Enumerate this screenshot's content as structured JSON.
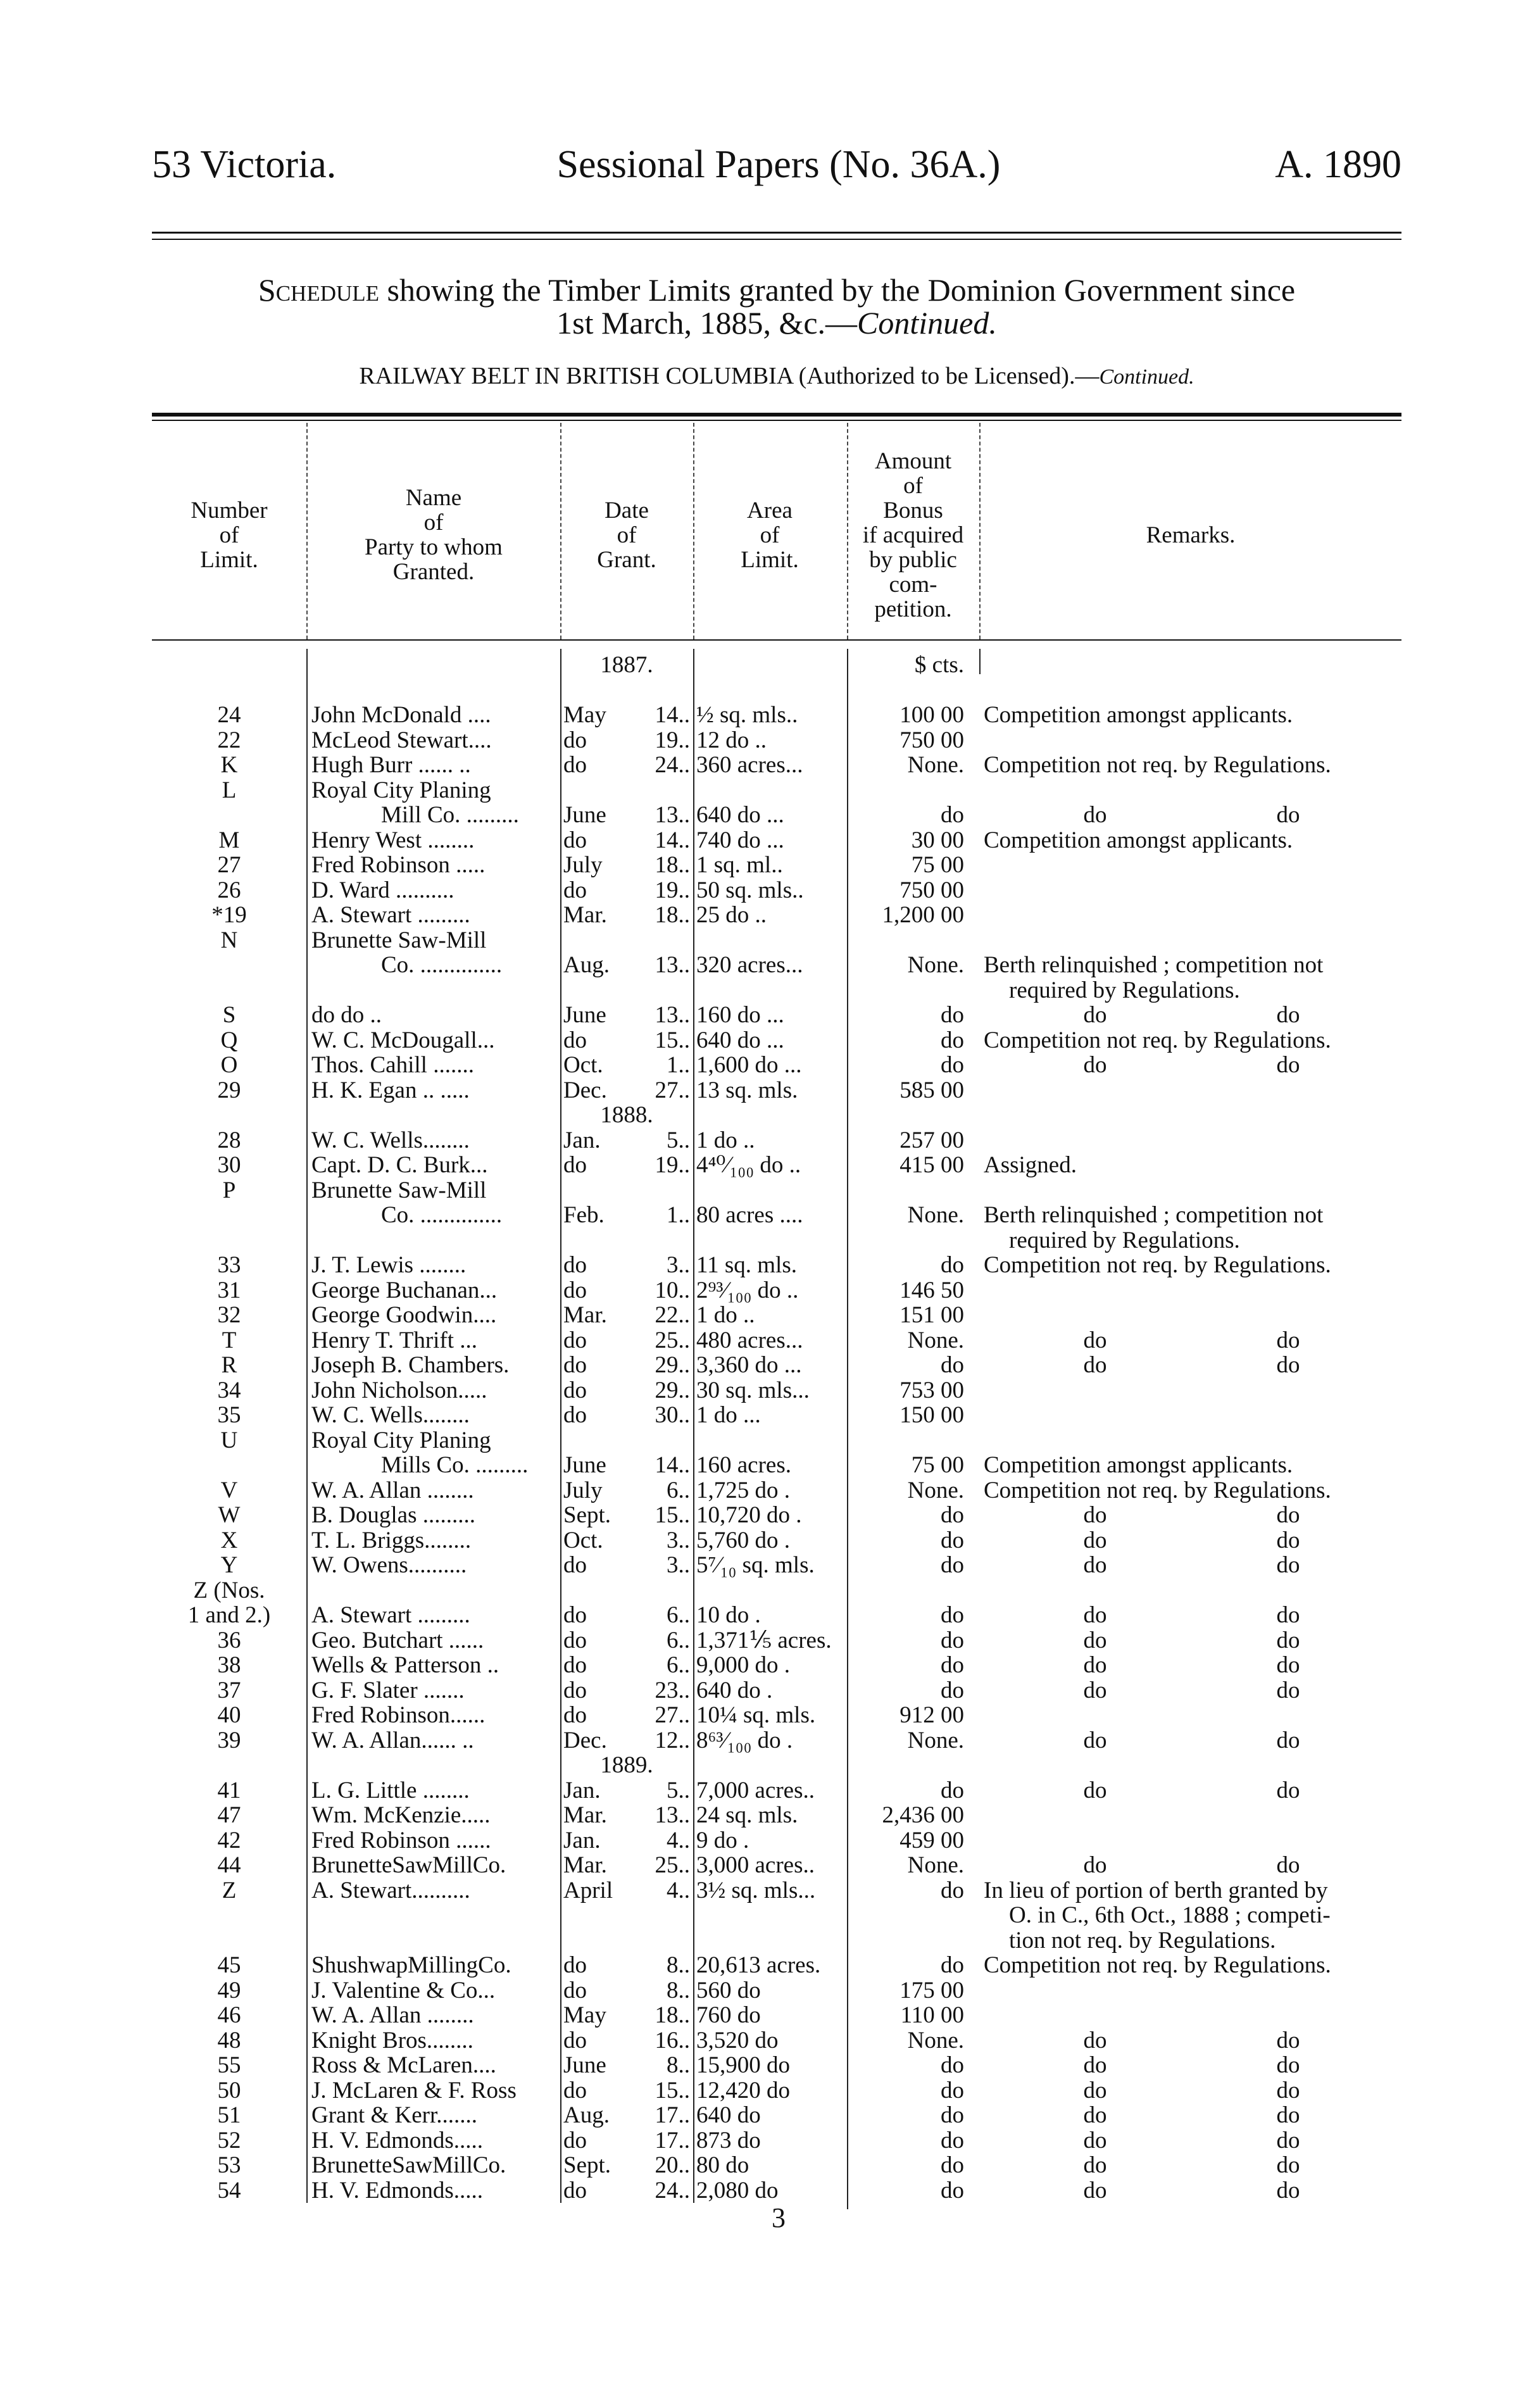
{
  "header": {
    "left": "53 Victoria.",
    "center": "Sessional Papers (No. 36A.)",
    "right": "A. 1890"
  },
  "title": {
    "lead": "Schedule",
    "line1": "showing the Timber Limits granted by the Dominion Government since",
    "line2_plain": "1st March, 1885, &c.—",
    "line2_italic": "Continued.",
    "subtitle_plain": "RAILWAY BELT IN BRITISH COLUMBIA (Authorized to be Licensed).—",
    "subtitle_italic": "Continued."
  },
  "columns": {
    "number": [
      "Number",
      "of",
      "Limit."
    ],
    "name": [
      "Name",
      "of",
      "Party to whom",
      "Granted."
    ],
    "date": [
      "Date",
      "of",
      "Grant."
    ],
    "area": [
      "Area",
      "of",
      "Limit."
    ],
    "bonus": [
      "Amount",
      "of",
      "Bonus",
      "if acquired",
      "by public",
      "com-",
      "petition."
    ],
    "remarks": [
      "Remarks."
    ]
  },
  "currency_units": "$  cts.",
  "page_number": "3",
  "rows": [
    {
      "year": "1887.",
      "bonus": "$  cts."
    },
    {},
    {
      "num": "24",
      "name": "John McDonald ....",
      "mon": "May",
      "day": "14..",
      "area": "½  sq. mls..",
      "bonus": "100 00",
      "rem": "Competition amongst applicants."
    },
    {
      "num": "22",
      "name": "McLeod Stewart....",
      "mon": "do",
      "day": "19..",
      "area": "12    do  ..",
      "bonus": "750 00"
    },
    {
      "num": "K",
      "name": "Hugh Burr ...... ..",
      "mon": "do",
      "day": "24..",
      "area": "360 acres...",
      "bonus": "None.",
      "rem": "Competition not req. by Regulations."
    },
    {
      "num": "L",
      "name": "Royal City Planing"
    },
    {
      "name_cont": "Mill Co. .........",
      "mon": "June",
      "day": "13..",
      "area": "640   do ...",
      "bonus": "do",
      "do": [
        "do",
        "do"
      ]
    },
    {
      "num": "M",
      "name": "Henry West ........",
      "mon": "do",
      "day": "14..",
      "area": "740   do ...",
      "bonus": "30 00",
      "rem": "Competition amongst applicants."
    },
    {
      "num": "27",
      "name": "Fred Robinson .....",
      "mon": "July",
      "day": "18..",
      "area": "1   sq. ml..",
      "bonus": "75 00"
    },
    {
      "num": "26",
      "name": "D. Ward ..........",
      "mon": "do",
      "day": "19..",
      "area": "50 sq. mls..",
      "bonus": "750 00"
    },
    {
      "num": "*19",
      "name": "A. Stewart .........",
      "mon": "Mar.",
      "day": "18..",
      "area": "25     do  ..",
      "bonus": "1,200 00"
    },
    {
      "num": "N",
      "name": "Brunette Saw-Mill"
    },
    {
      "name_cont": "Co. ..............",
      "mon": "Aug.",
      "day": "13..",
      "area": "320 acres...",
      "bonus": "None.",
      "rem": "Berth relinquished ; competition not"
    },
    {
      "rem_cont": "required by Regulations."
    },
    {
      "num": "S",
      "name": "   do        do   ..",
      "mon": "June",
      "day": "13..",
      "area": "160   do ...",
      "bonus": "do",
      "do": [
        "do",
        "do"
      ]
    },
    {
      "num": "Q",
      "name": "W. C. McDougall...",
      "mon": "do",
      "day": "15..",
      "area": "640   do ...",
      "bonus": "do",
      "rem": "Competition not req. by Regulations."
    },
    {
      "num": "O",
      "name": "Thos. Cahill .......",
      "mon": "Oct.",
      "day": "1..",
      "area": "1,600 do ...",
      "bonus": "do",
      "do": [
        "do",
        "do"
      ]
    },
    {
      "num": "29",
      "name": "H. K. Egan .. .....",
      "mon": "Dec.",
      "day": "27..",
      "area": "13   sq. mls.",
      "bonus": "585 00"
    },
    {
      "year": "1888."
    },
    {
      "num": "28",
      "name": "W. C. Wells........",
      "mon": "Jan.",
      "day": "5..",
      "area": "1        do  ..",
      "bonus": "257 00"
    },
    {
      "num": "30",
      "name": "Capt. D. C. Burk...",
      "mon": "do",
      "day": "19..",
      "area": "4⁴⁰⁄₁₀₀    do  ..",
      "bonus": "415 00",
      "rem": "Assigned."
    },
    {
      "num": "P",
      "name": "Brunette Saw-Mill"
    },
    {
      "name_cont": "Co. ..............",
      "mon": "Feb.",
      "day": "1..",
      "area": "80 acres ....",
      "bonus": "None.",
      "rem": "Berth relinquished ; competition not"
    },
    {
      "rem_cont": "required by Regulations."
    },
    {
      "num": "33",
      "name": "J. T. Lewis ........",
      "mon": "do",
      "day": "3..",
      "area": "11   sq. mls.",
      "bonus": "do",
      "rem": "Competition not req. by Regulations."
    },
    {
      "num": "31",
      "name": "George Buchanan...",
      "mon": "do",
      "day": "10..",
      "area": "2⁹³⁄₁₀₀    do  ..",
      "bonus": "146 50"
    },
    {
      "num": "32",
      "name": "George Goodwin....",
      "mon": "Mar.",
      "day": "22..",
      "area": "1        do  ..",
      "bonus": "151 00"
    },
    {
      "num": "T",
      "name": "Henry T. Thrift ...",
      "mon": "do",
      "day": "25..",
      "area": "480 acres...",
      "bonus": "None.",
      "do": [
        "do",
        "do"
      ]
    },
    {
      "num": "R",
      "name": "Joseph B. Chambers.",
      "mon": "do",
      "day": "29..",
      "area": "3,360 do ...",
      "bonus": "do",
      "do": [
        "do",
        "do"
      ]
    },
    {
      "num": "34",
      "name": "John Nicholson.....",
      "mon": "do",
      "day": "29..",
      "area": "30 sq. mls...",
      "bonus": "753 00"
    },
    {
      "num": "35",
      "name": "W. C. Wells........",
      "mon": "do",
      "day": "30..",
      "area": "1      do   ...",
      "bonus": "150 00"
    },
    {
      "num": "U",
      "name": "Royal City Planing"
    },
    {
      "name_cont": "Mills Co. .........",
      "mon": "June",
      "day": "14..",
      "area": "160     acres.",
      "bonus": "75 00",
      "rem": "Competition amongst applicants."
    },
    {
      "num": "V",
      "name": "W. A. Allan ........",
      "mon": "July",
      "day": "6..",
      "area": "1,725     do .",
      "bonus": "None.",
      "rem": "Competition not req. by Regulations."
    },
    {
      "num": "W",
      "name": "B. Douglas .........",
      "mon": "Sept.",
      "day": "15..",
      "area": "10,720   do .",
      "bonus": "do",
      "do": [
        "do",
        "do"
      ]
    },
    {
      "num": "X",
      "name": "T. L. Briggs........",
      "mon": "Oct.",
      "day": "3..",
      "area": "5,760     do .",
      "bonus": "do",
      "do": [
        "do",
        "do"
      ]
    },
    {
      "num": "Y",
      "name": "W. Owens..........",
      "mon": "do",
      "day": "3..",
      "area": "5⁷⁄₁₀  sq. mls.",
      "bonus": "do",
      "do": [
        "do",
        "do"
      ]
    },
    {
      "num": "Z (Nos."
    },
    {
      "num": "1 and 2.)",
      "name": "A. Stewart .........",
      "mon": "do",
      "day": "6..",
      "area": "10       do  .",
      "bonus": "do",
      "do": [
        "do",
        "do"
      ]
    },
    {
      "num": "36",
      "name": "Geo. Butchart ......",
      "mon": "do",
      "day": "6..",
      "area": "1,371⅕ acres.",
      "bonus": "do",
      "do": [
        "do",
        "do"
      ]
    },
    {
      "num": "38",
      "name": "Wells & Patterson ..",
      "mon": "do",
      "day": "6..",
      "area": "9,000     do .",
      "bonus": "do",
      "do": [
        "do",
        "do"
      ]
    },
    {
      "num": "37",
      "name": "G. F. Slater .......",
      "mon": "do",
      "day": "23..",
      "area": "640       do .",
      "bonus": "do",
      "do": [
        "do",
        "do"
      ]
    },
    {
      "num": "40",
      "name": "Fred Robinson......",
      "mon": "do",
      "day": "27..",
      "area": "10¼  sq. mls.",
      "bonus": "912 00"
    },
    {
      "num": "39",
      "name": "W. A. Allan...... ..",
      "mon": "Dec.",
      "day": "12..",
      "area": "8⁶³⁄₁₀₀    do  .",
      "bonus": "None.",
      "do": [
        "do",
        "do"
      ]
    },
    {
      "year": "1889."
    },
    {
      "num": "41",
      "name": "L. G. Little ........",
      "mon": "Jan.",
      "day": "5..",
      "area": "7,000 acres..",
      "bonus": "do",
      "do": [
        "do",
        "do"
      ]
    },
    {
      "num": "47",
      "name": "Wm. McKenzie.....",
      "mon": "Mar.",
      "day": "13..",
      "area": "24   sq. mls.",
      "bonus": "2,436 00"
    },
    {
      "num": "42",
      "name": "Fred Robinson ......",
      "mon": "Jan.",
      "day": "4..",
      "area": "9        do  .",
      "bonus": "459 00"
    },
    {
      "num": "44",
      "name": "BrunetteSawMillCo.",
      "mon": "Mar.",
      "day": "25..",
      "area": "3,000 acres..",
      "bonus": "None.",
      "do": [
        "do",
        "do"
      ]
    },
    {
      "num": "Z",
      "name": "A. Stewart..........",
      "mon": "April",
      "day": "4..",
      "area": "3½ sq. mls...",
      "bonus": "do",
      "rem": "In lieu of portion of berth granted by"
    },
    {
      "rem_cont": "O. in C., 6th Oct., 1888 ; competi-"
    },
    {
      "rem_cont": "tion not req. by Regulations."
    },
    {
      "num": "45",
      "name": "ShushwapMillingCo.",
      "mon": "do",
      "day": "8..",
      "area": "20,613 acres.",
      "bonus": "do",
      "rem": "Competition not req. by Regulations."
    },
    {
      "num": "49",
      "name": "J. Valentine & Co...",
      "mon": "do",
      "day": "8..",
      "area": "560        do",
      "bonus": "175 00"
    },
    {
      "num": "46",
      "name": "W. A. Allan ........",
      "mon": "May",
      "day": "18..",
      "area": "760        do",
      "bonus": "110 00"
    },
    {
      "num": "48",
      "name": "Knight Bros........",
      "mon": "do",
      "day": "16..",
      "area": "3,520     do",
      "bonus": "None.",
      "do": [
        "do",
        "do"
      ]
    },
    {
      "num": "55",
      "name": "Ross & McLaren....",
      "mon": "June",
      "day": "8..",
      "area": "15,900   do",
      "bonus": "do",
      "do": [
        "do",
        "do"
      ]
    },
    {
      "num": "50",
      "name": "J. McLaren & F. Ross",
      "mon": "do",
      "day": "15..",
      "area": "12,420   do",
      "bonus": "do",
      "do": [
        "do",
        "do"
      ]
    },
    {
      "num": "51",
      "name": "Grant & Kerr.......",
      "mon": "Aug.",
      "day": "17..",
      "area": "640        do",
      "bonus": "do",
      "do": [
        "do",
        "do"
      ]
    },
    {
      "num": "52",
      "name": "H. V. Edmonds.....",
      "mon": "do",
      "day": "17..",
      "area": "873        do",
      "bonus": "do",
      "do": [
        "do",
        "do"
      ]
    },
    {
      "num": "53",
      "name": "BrunetteSawMillCo.",
      "mon": "Sept.",
      "day": "20..",
      "area": "80          do",
      "bonus": "do",
      "do": [
        "do",
        "do"
      ]
    },
    {
      "num": "54",
      "name": "H. V. Edmonds.....",
      "mon": "do",
      "day": "24..",
      "area": "2,080     do",
      "bonus": "do",
      "do": [
        "do",
        "do"
      ]
    }
  ]
}
